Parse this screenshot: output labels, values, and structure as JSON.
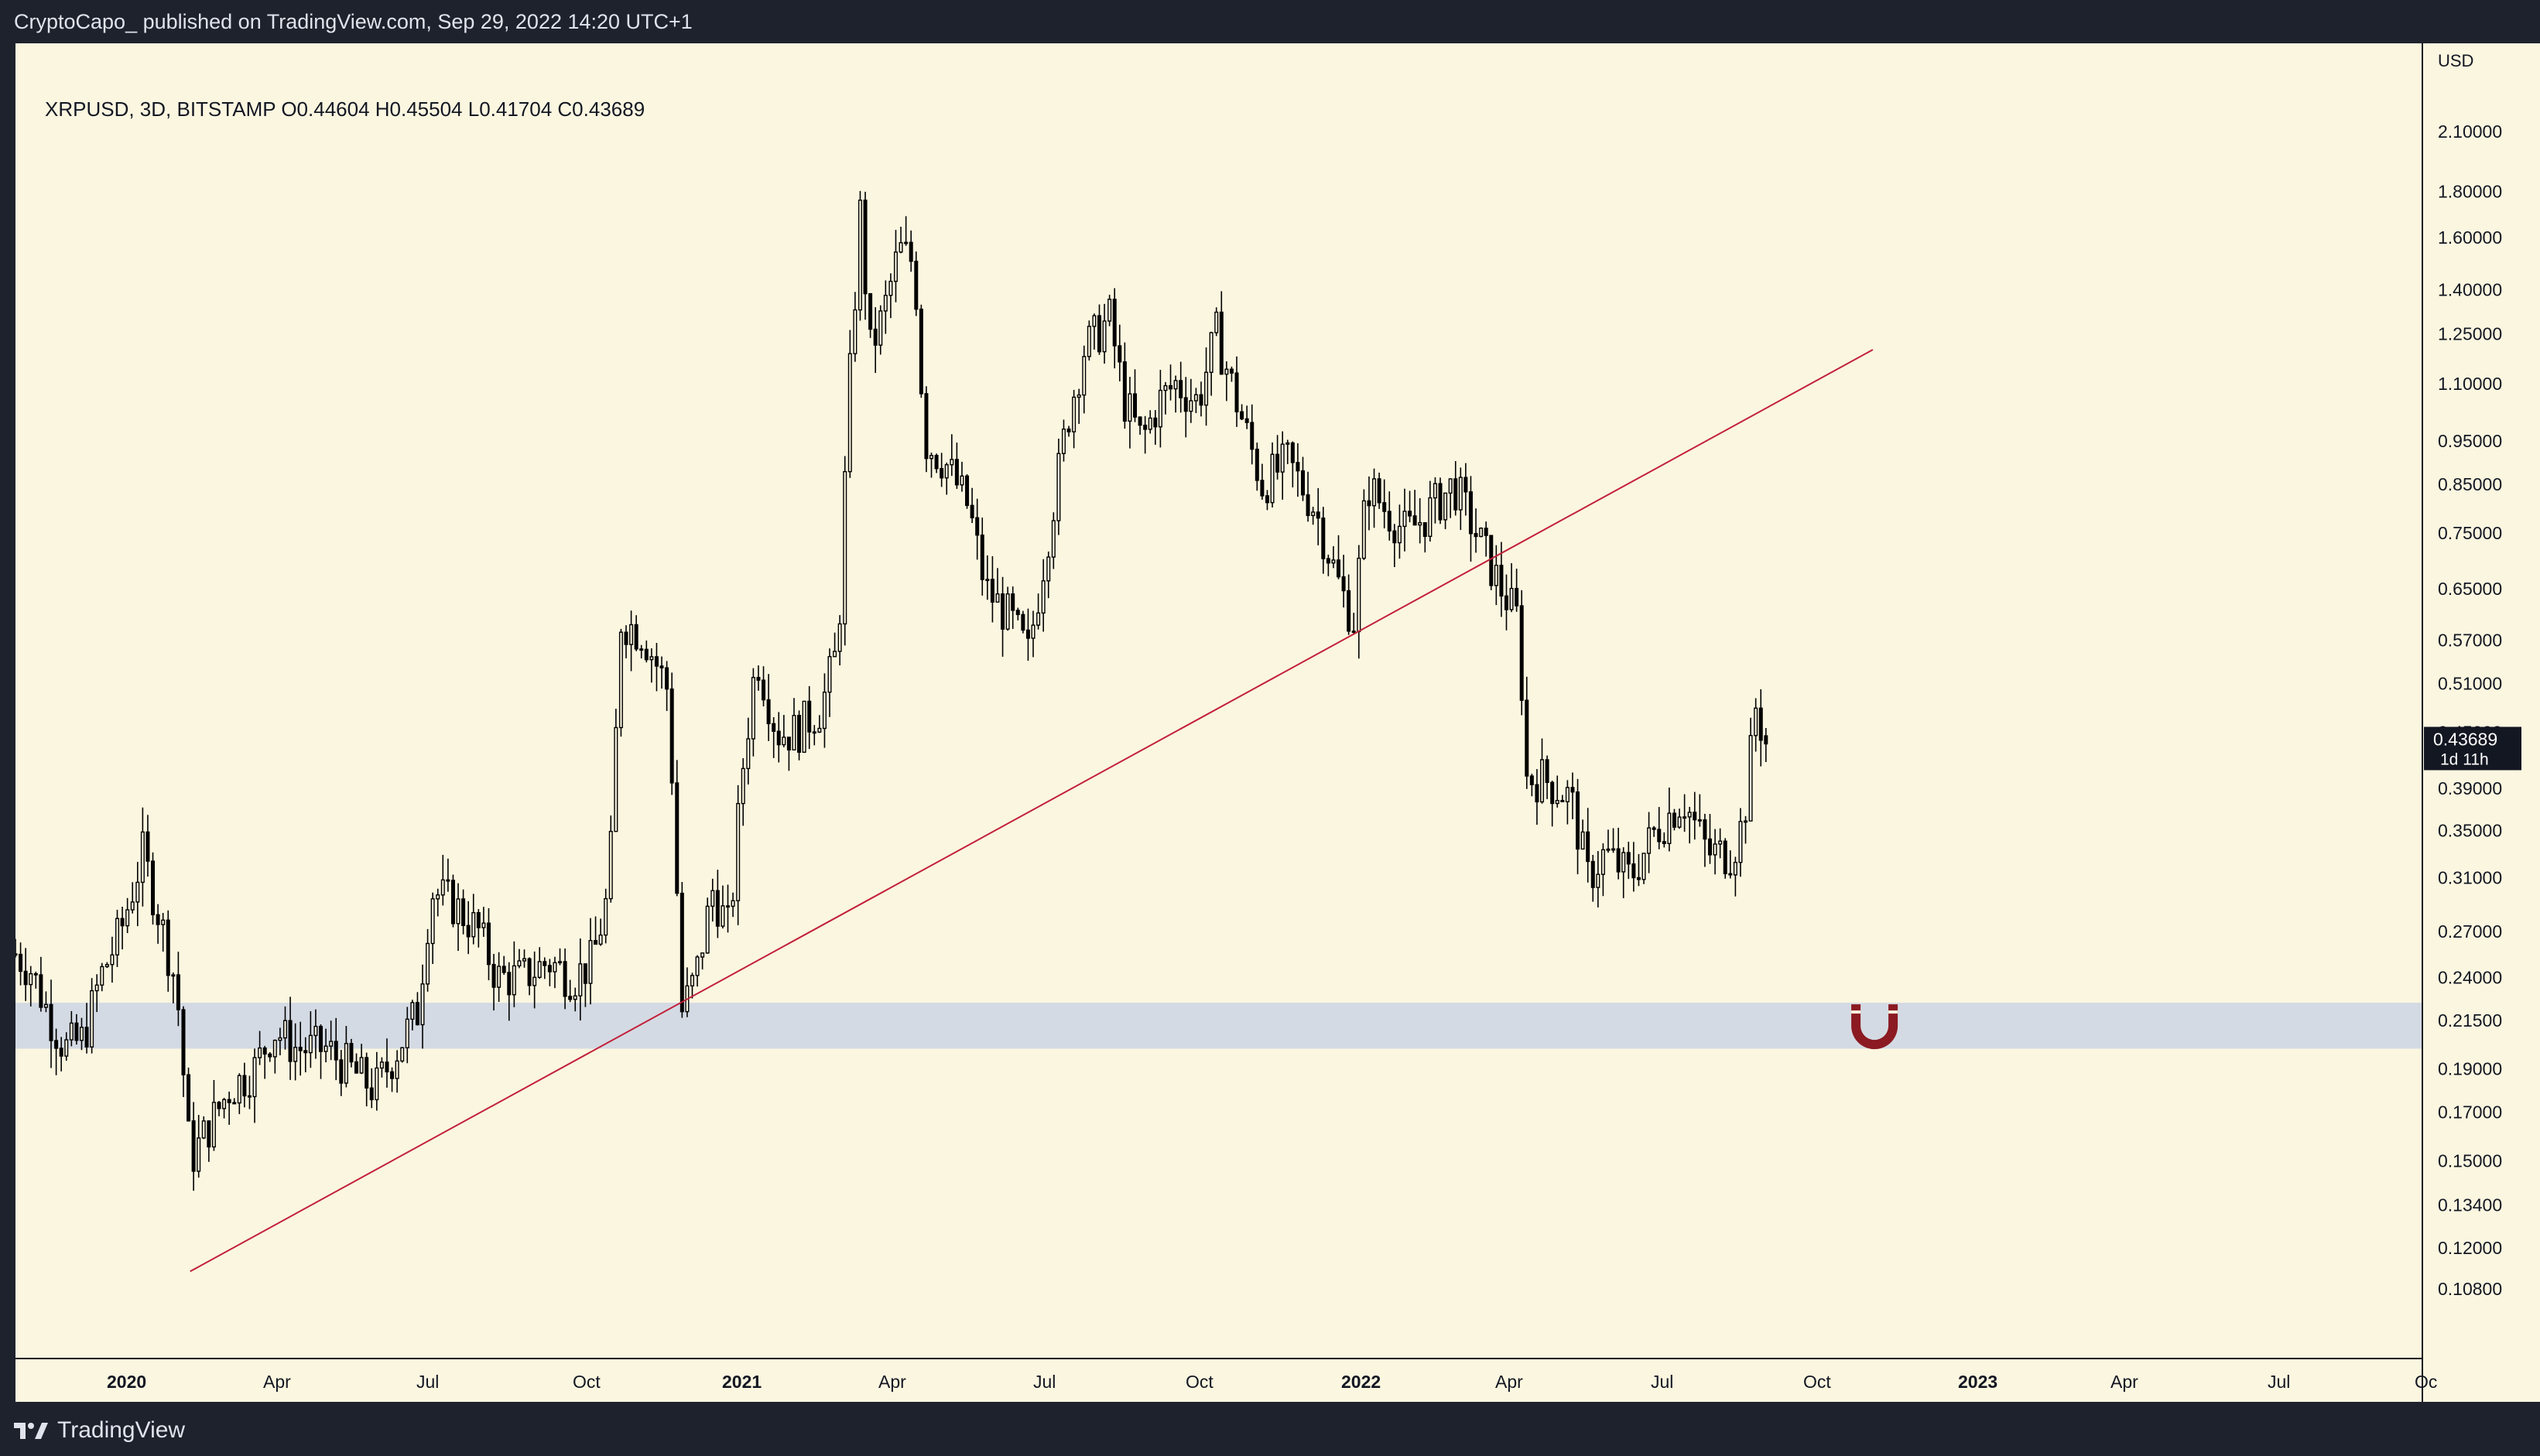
{
  "header": {
    "published_line": "CryptoCapo_ published on TradingView.com, Sep 29, 2022 14:20 UTC+1"
  },
  "legend": {
    "text": "XRPUSD, 3D, BITSTAMP  O0.44604  H0.45504  L0.41704  C0.43689"
  },
  "footer": {
    "brand": "TradingView",
    "logo_icon": "tradingview-logo-icon"
  },
  "colors": {
    "background": "#fbf6e0",
    "frame": "#1e222d",
    "candle": "#000000",
    "trendline": "#c2203a",
    "support_zone": "#d4dae3",
    "magnet_icon": "#8b1a22"
  },
  "chart_data": {
    "type": "candlestick",
    "symbol": "XRPUSD",
    "timeframe": "3D",
    "exchange": "BITSTAMP",
    "ohlc_last": {
      "open": 0.44604,
      "high": 0.45504,
      "low": 0.41704,
      "close": 0.43689
    },
    "price_axis": {
      "unit": "USD",
      "scale": "log",
      "ticks": [
        "2.10000",
        "1.80000",
        "1.60000",
        "1.40000",
        "1.25000",
        "1.10000",
        "0.95000",
        "0.85000",
        "0.75000",
        "0.65000",
        "0.57000",
        "0.51000",
        "0.45000",
        "0.39000",
        "0.35000",
        "0.31000",
        "0.27000",
        "0.24000",
        "0.21500",
        "0.19000",
        "0.17000",
        "0.15000",
        "0.13400",
        "0.12000",
        "0.10800"
      ],
      "ylim": [
        0.1,
        2.3
      ]
    },
    "last_price_label": {
      "price": "0.43689",
      "countdown": "1d 11h"
    },
    "time_axis": {
      "ticks": [
        "2020",
        "Apr",
        "Jul",
        "Oct",
        "2021",
        "Apr",
        "Jul",
        "Oct",
        "2022",
        "Apr",
        "Jul",
        "Oct",
        "2023",
        "Apr",
        "Jul",
        "Oc"
      ],
      "bold_ticks": [
        "2020",
        "2021",
        "2022",
        "2023"
      ],
      "range": [
        "2019-12",
        "2023-10"
      ]
    },
    "candles_close_path": [
      [
        "2019-12-01",
        0.255
      ],
      [
        "2019-12-10",
        0.245
      ],
      [
        "2019-12-20",
        0.22
      ],
      [
        "2019-12-30",
        0.2
      ],
      [
        "2020-01-10",
        0.205
      ],
      [
        "2020-01-20",
        0.24
      ],
      [
        "2020-02-01",
        0.27
      ],
      [
        "2020-02-14",
        0.33
      ],
      [
        "2020-02-24",
        0.28
      ],
      [
        "2020-03-05",
        0.235
      ],
      [
        "2020-03-13",
        0.15
      ],
      [
        "2020-03-25",
        0.165
      ],
      [
        "2020-04-05",
        0.18
      ],
      [
        "2020-04-20",
        0.19
      ],
      [
        "2020-05-01",
        0.21
      ],
      [
        "2020-05-15",
        0.2
      ],
      [
        "2020-06-01",
        0.2
      ],
      [
        "2020-06-15",
        0.19
      ],
      [
        "2020-06-30",
        0.18
      ],
      [
        "2020-07-10",
        0.195
      ],
      [
        "2020-07-25",
        0.22
      ],
      [
        "2020-08-02",
        0.3
      ],
      [
        "2020-08-15",
        0.29
      ],
      [
        "2020-08-30",
        0.27
      ],
      [
        "2020-09-10",
        0.24
      ],
      [
        "2020-09-25",
        0.24
      ],
      [
        "2020-10-10",
        0.25
      ],
      [
        "2020-10-25",
        0.24
      ],
      [
        "2020-11-05",
        0.25
      ],
      [
        "2020-11-15",
        0.3
      ],
      [
        "2020-11-22",
        0.6
      ],
      [
        "2020-12-05",
        0.58
      ],
      [
        "2020-12-20",
        0.5
      ],
      [
        "2020-12-28",
        0.22
      ],
      [
        "2021-01-05",
        0.24
      ],
      [
        "2021-01-15",
        0.3
      ],
      [
        "2021-01-25",
        0.27
      ],
      [
        "2021-02-01",
        0.4
      ],
      [
        "2021-02-10",
        0.55
      ],
      [
        "2021-02-22",
        0.45
      ],
      [
        "2021-03-05",
        0.45
      ],
      [
        "2021-03-20",
        0.48
      ],
      [
        "2021-03-30",
        0.56
      ],
      [
        "2021-04-05",
        1.05
      ],
      [
        "2021-04-12",
        1.7
      ],
      [
        "2021-04-18",
        1.2
      ],
      [
        "2021-04-25",
        1.3
      ],
      [
        "2021-05-05",
        1.55
      ],
      [
        "2021-05-14",
        1.5
      ],
      [
        "2021-05-20",
        0.95
      ],
      [
        "2021-06-01",
        0.9
      ],
      [
        "2021-06-15",
        0.8
      ],
      [
        "2021-06-25",
        0.65
      ],
      [
        "2021-07-10",
        0.6
      ],
      [
        "2021-07-20",
        0.55
      ],
      [
        "2021-08-01",
        0.75
      ],
      [
        "2021-08-12",
        1.0
      ],
      [
        "2021-08-22",
        1.2
      ],
      [
        "2021-09-06",
        1.3
      ],
      [
        "2021-09-15",
        1.05
      ],
      [
        "2021-09-25",
        0.95
      ],
      [
        "2021-10-05",
        1.05
      ],
      [
        "2021-10-15",
        1.1
      ],
      [
        "2021-10-28",
        1.05
      ],
      [
        "2021-11-08",
        1.25
      ],
      [
        "2021-11-20",
        1.05
      ],
      [
        "2021-12-05",
        0.85
      ],
      [
        "2021-12-20",
        0.9
      ],
      [
        "2022-01-05",
        0.8
      ],
      [
        "2022-01-20",
        0.65
      ],
      [
        "2022-01-28",
        0.6
      ],
      [
        "2022-02-05",
        0.85
      ],
      [
        "2022-02-15",
        0.8
      ],
      [
        "2022-02-28",
        0.75
      ],
      [
        "2022-03-10",
        0.78
      ],
      [
        "2022-03-28",
        0.85
      ],
      [
        "2022-04-10",
        0.75
      ],
      [
        "2022-04-25",
        0.65
      ],
      [
        "2022-05-05",
        0.6
      ],
      [
        "2022-05-10",
        0.4
      ],
      [
        "2022-05-20",
        0.4
      ],
      [
        "2022-06-05",
        0.38
      ],
      [
        "2022-06-15",
        0.31
      ],
      [
        "2022-06-25",
        0.33
      ],
      [
        "2022-07-10",
        0.31
      ],
      [
        "2022-07-25",
        0.35
      ],
      [
        "2022-08-10",
        0.38
      ],
      [
        "2022-08-25",
        0.33
      ],
      [
        "2022-09-08",
        0.33
      ],
      [
        "2022-09-15",
        0.36
      ],
      [
        "2022-09-22",
        0.48
      ],
      [
        "2022-09-28",
        0.43689
      ]
    ],
    "drawings": [
      {
        "type": "trendline",
        "from": [
          "2020-03-13",
          0.113
        ],
        "to": [
          "2022-11-30",
          1.2
        ]
      },
      {
        "type": "support_zone",
        "low": 0.2,
        "high": 0.225
      }
    ],
    "annotations": [
      {
        "type": "icon",
        "name": "magnet-icon",
        "at": [
          "2022-12-01",
          0.212
        ]
      }
    ]
  }
}
